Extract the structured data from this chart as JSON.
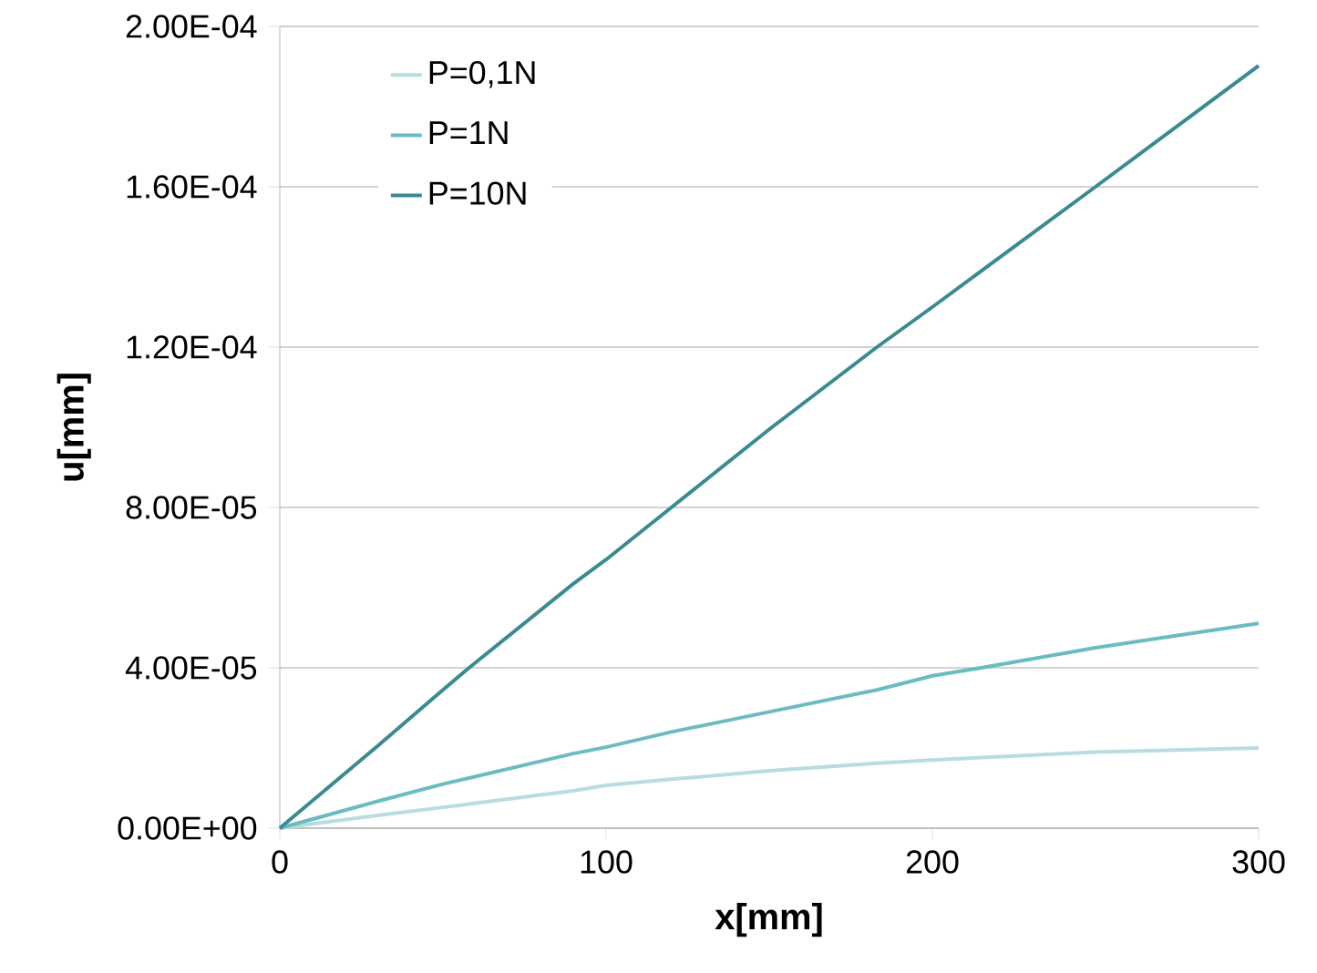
{
  "chart_data": {
    "type": "line",
    "xlabel": "x[mm]",
    "ylabel": "u[mm]",
    "xlim": [
      0,
      300
    ],
    "xticks": [
      0,
      100,
      200,
      300
    ],
    "ylim": [
      0,
      0.0002
    ],
    "yticks": [
      {
        "value": 0,
        "label": "0.00E+00"
      },
      {
        "value": 4e-05,
        "label": "4.00E-05"
      },
      {
        "value": 8e-05,
        "label": "8.00E-05"
      },
      {
        "value": 0.00012,
        "label": "1.20E-04"
      },
      {
        "value": 0.00016,
        "label": "1.60E-04"
      },
      {
        "value": 0.0002,
        "label": "2.00E-04"
      }
    ],
    "grid": "y",
    "legend": "top left",
    "marker": "none",
    "line_style": "solid",
    "x": [
      0,
      30,
      50,
      58,
      90,
      100,
      120,
      150,
      183,
      200,
      215,
      250,
      300
    ],
    "series": [
      {
        "name": "P=0,1N",
        "color": "#b7dde0",
        "values": [
          0,
          3.2e-06,
          5.2e-06,
          6e-06,
          9.3e-06,
          1.07e-05,
          1.22e-05,
          1.43e-05,
          1.62e-05,
          1.7e-05,
          1.76e-05,
          1.9e-05,
          2e-05
        ]
      },
      {
        "name": "P=1N",
        "color": "#6bbcc1",
        "values": [
          0,
          6.7e-06,
          1.1e-05,
          1.25e-05,
          1.86e-05,
          2.02e-05,
          2.4e-05,
          2.9e-05,
          3.45e-05,
          3.8e-05,
          4e-05,
          4.5e-05,
          5.11e-05
        ]
      },
      {
        "name": "P=10N",
        "color": "#3a8b91",
        "values": [
          0,
          2.05e-05,
          3.45e-05,
          4e-05,
          6.1e-05,
          6.7e-05,
          8e-05,
          9.95e-05,
          0.00012,
          0.00013,
          0.000139,
          0.00016,
          0.0001902
        ]
      }
    ]
  }
}
